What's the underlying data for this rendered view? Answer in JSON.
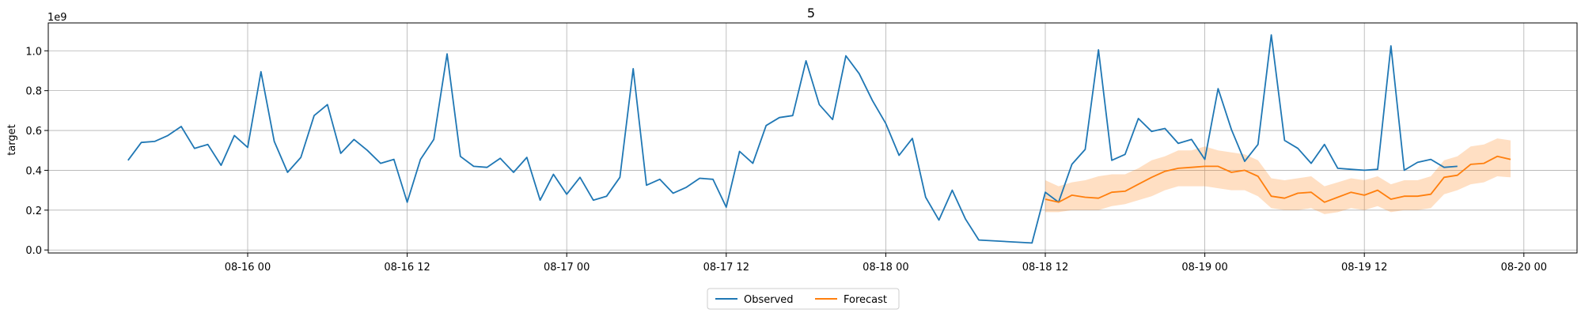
{
  "chart_data": {
    "type": "line",
    "title": "5",
    "xlabel": "",
    "ylabel": "target",
    "y_multiplier_label": "1e9",
    "x_axis_type": "datetime",
    "x_ticks": [
      "08-16 00",
      "08-16 12",
      "08-17 00",
      "08-17 12",
      "08-18 00",
      "08-18 12",
      "08-19 00",
      "08-19 12",
      "08-20 00"
    ],
    "y_ticks": [
      "0.0",
      "0.2",
      "0.4",
      "0.6",
      "0.8",
      "1.0"
    ],
    "ylim": [
      -0.015,
      1.14
    ],
    "xlim": [
      "2024-08-15 09:00",
      "2024-08-20 04:00"
    ],
    "grid": true,
    "legend_position": "bottom-center",
    "series": [
      {
        "name": "Observed",
        "color": "#1f77b4",
        "x_start": "2024-08-15 15:00",
        "x_step_hours": 1,
        "values": [
          0.45,
          0.54,
          0.545,
          0.575,
          0.62,
          0.51,
          0.53,
          0.425,
          0.575,
          0.515,
          0.895,
          0.545,
          0.39,
          0.465,
          0.675,
          0.73,
          0.485,
          0.555,
          0.5,
          0.435,
          0.455,
          0.24,
          0.455,
          0.555,
          0.985,
          0.47,
          0.42,
          0.415,
          0.46,
          0.39,
          0.465,
          0.25,
          0.38,
          0.28,
          0.365,
          0.25,
          0.27,
          0.365,
          0.91,
          0.325,
          0.355,
          0.285,
          0.315,
          0.36,
          0.355,
          0.215,
          0.495,
          0.435,
          0.625,
          0.665,
          0.675,
          0.95,
          0.73,
          0.655,
          0.975,
          0.885,
          0.75,
          0.635,
          0.475,
          0.56,
          0.265,
          0.15,
          0.3,
          0.155,
          0.05,
          null,
          null,
          null,
          0.035,
          0.29,
          0.24,
          0.43,
          0.505,
          1.005,
          0.45,
          0.48,
          0.66,
          0.595,
          0.61,
          0.535,
          0.555,
          0.455,
          0.81,
          0.605,
          0.445,
          0.53,
          1.08,
          0.55,
          0.51,
          0.435,
          0.53,
          0.41,
          0.405,
          0.4,
          0.405,
          1.025,
          0.4,
          0.44,
          0.455,
          0.415,
          0.42
        ]
      },
      {
        "name": "Forecast",
        "color": "#ff7f0e",
        "x_start": "2024-08-18 12:00",
        "x_step_hours": 1,
        "values": [
          0.255,
          0.24,
          0.275,
          0.265,
          0.26,
          0.29,
          0.295,
          0.33,
          0.365,
          0.395,
          0.41,
          0.415,
          0.42,
          0.42,
          0.39,
          0.4,
          0.37,
          0.27,
          0.26,
          0.285,
          0.29,
          0.24,
          0.265,
          0.29,
          0.275,
          0.3,
          0.255,
          0.27,
          0.27,
          0.28,
          0.365,
          0.375,
          0.43,
          0.435,
          0.47,
          0.455
        ],
        "band_lower": [
          0.19,
          0.19,
          0.2,
          0.2,
          0.2,
          0.22,
          0.23,
          0.25,
          0.27,
          0.3,
          0.32,
          0.32,
          0.32,
          0.31,
          0.3,
          0.3,
          0.27,
          0.21,
          0.2,
          0.2,
          0.21,
          0.18,
          0.19,
          0.21,
          0.2,
          0.22,
          0.19,
          0.2,
          0.2,
          0.21,
          0.28,
          0.3,
          0.33,
          0.34,
          0.37,
          0.365
        ],
        "band_upper": [
          0.35,
          0.32,
          0.34,
          0.35,
          0.37,
          0.38,
          0.38,
          0.41,
          0.45,
          0.47,
          0.5,
          0.5,
          0.52,
          0.5,
          0.49,
          0.48,
          0.45,
          0.36,
          0.35,
          0.36,
          0.37,
          0.32,
          0.34,
          0.36,
          0.35,
          0.37,
          0.33,
          0.35,
          0.35,
          0.37,
          0.45,
          0.47,
          0.52,
          0.53,
          0.56,
          0.55
        ],
        "band_color": "#ff7f0e"
      }
    ]
  }
}
